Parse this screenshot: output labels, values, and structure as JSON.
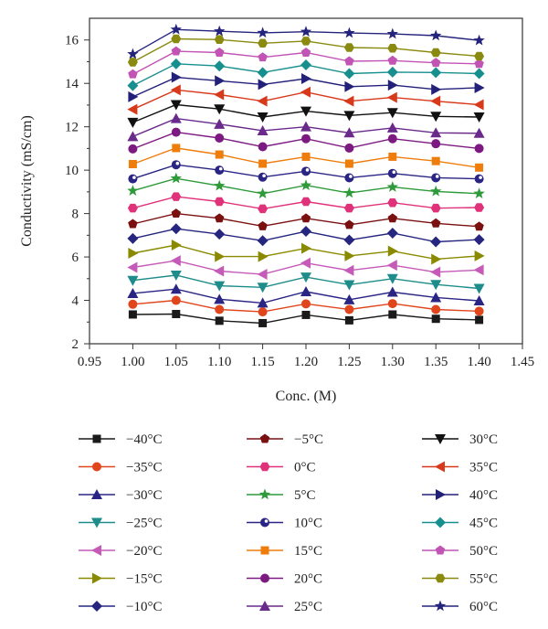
{
  "chart_data": {
    "type": "line",
    "xlabel": "Conc. (M)",
    "ylabel": "Conductivity (mS/cm)",
    "xlim": [
      0.95,
      1.45
    ],
    "ylim": [
      2,
      17
    ],
    "xticks": [
      "0.95",
      "1.00",
      "1.05",
      "1.10",
      "1.15",
      "1.20",
      "1.25",
      "1.30",
      "1.35",
      "1.40",
      "1.45"
    ],
    "yticks": [
      "2",
      "4",
      "6",
      "8",
      "10",
      "12",
      "14",
      "16"
    ],
    "grid": false,
    "legend_position": "bottom",
    "x": [
      1.0,
      1.05,
      1.1,
      1.15,
      1.2,
      1.25,
      1.3,
      1.35,
      1.4
    ],
    "series": [
      {
        "name": "−40°C",
        "color": "#1a1a1a",
        "marker": "square",
        "values": [
          3.35,
          3.37,
          3.06,
          2.95,
          3.33,
          3.08,
          3.35,
          3.15,
          3.1
        ]
      },
      {
        "name": "−35°C",
        "color": "#e0451c",
        "marker": "circle",
        "values": [
          3.82,
          4.0,
          3.58,
          3.47,
          3.84,
          3.58,
          3.85,
          3.58,
          3.5
        ]
      },
      {
        "name": "−30°C",
        "color": "#2a2585",
        "marker": "triangle-up",
        "values": [
          4.32,
          4.52,
          4.05,
          3.88,
          4.4,
          4.03,
          4.38,
          4.13,
          3.98
        ]
      },
      {
        "name": "−25°C",
        "color": "#1e8c8a",
        "marker": "triangle-down",
        "values": [
          4.92,
          5.16,
          4.67,
          4.6,
          5.07,
          4.72,
          5.0,
          4.73,
          4.55
        ]
      },
      {
        "name": "−20°C",
        "color": "#c65ab8",
        "marker": "triangle-left",
        "values": [
          5.52,
          5.83,
          5.35,
          5.2,
          5.72,
          5.38,
          5.62,
          5.3,
          5.4
        ]
      },
      {
        "name": "−15°C",
        "color": "#8a8a00",
        "marker": "triangle-right",
        "values": [
          6.17,
          6.55,
          6.02,
          6.02,
          6.4,
          6.05,
          6.27,
          5.9,
          6.05
        ]
      },
      {
        "name": "−10°C",
        "color": "#262680",
        "marker": "diamond",
        "values": [
          6.85,
          7.3,
          7.05,
          6.75,
          7.18,
          6.78,
          7.1,
          6.7,
          6.8
        ]
      },
      {
        "name": "−5°C",
        "color": "#7a1010",
        "marker": "pentagon",
        "values": [
          7.52,
          8.0,
          7.78,
          7.42,
          7.78,
          7.48,
          7.78,
          7.55,
          7.4
        ]
      },
      {
        "name": "0°C",
        "color": "#e0327a",
        "marker": "hexagon",
        "values": [
          8.25,
          8.78,
          8.55,
          8.22,
          8.55,
          8.25,
          8.5,
          8.25,
          8.28
        ]
      },
      {
        "name": "5°C",
        "color": "#2e9a3a",
        "marker": "star",
        "values": [
          9.05,
          9.62,
          9.28,
          8.92,
          9.3,
          8.95,
          9.22,
          9.02,
          8.92
        ]
      },
      {
        "name": "10°C",
        "color": "#2a2585",
        "marker": "circle-half",
        "values": [
          9.6,
          10.25,
          10.0,
          9.68,
          9.95,
          9.65,
          9.85,
          9.65,
          9.6
        ]
      },
      {
        "name": "15°C",
        "color": "#ee7d0c",
        "marker": "square",
        "values": [
          10.28,
          11.02,
          10.72,
          10.3,
          10.62,
          10.3,
          10.62,
          10.42,
          10.12
        ]
      },
      {
        "name": "20°C",
        "color": "#7d1a82",
        "marker": "circle",
        "values": [
          10.98,
          11.75,
          11.48,
          11.08,
          11.45,
          11.02,
          11.45,
          11.22,
          11.0
        ]
      },
      {
        "name": "25°C",
        "color": "#6a2a8c",
        "marker": "triangle-up",
        "values": [
          11.55,
          12.38,
          12.12,
          11.82,
          12.0,
          11.72,
          11.95,
          11.72,
          11.7
        ]
      },
      {
        "name": "30°C",
        "color": "#111111",
        "marker": "triangle-down",
        "values": [
          12.2,
          13.02,
          12.82,
          12.45,
          12.72,
          12.52,
          12.65,
          12.48,
          12.45
        ]
      },
      {
        "name": "35°C",
        "color": "#d8391b",
        "marker": "triangle-left",
        "values": [
          12.8,
          13.7,
          13.48,
          13.18,
          13.6,
          13.18,
          13.35,
          13.18,
          13.02
        ]
      },
      {
        "name": "40°C",
        "color": "#23207a",
        "marker": "triangle-right",
        "values": [
          13.38,
          14.28,
          14.12,
          13.95,
          14.22,
          13.85,
          13.92,
          13.72,
          13.8
        ]
      },
      {
        "name": "45°C",
        "color": "#178f8f",
        "marker": "diamond",
        "values": [
          13.9,
          14.9,
          14.8,
          14.5,
          14.85,
          14.45,
          14.52,
          14.5,
          14.45
        ]
      },
      {
        "name": "50°C",
        "color": "#c254b5",
        "marker": "pentagon",
        "values": [
          14.42,
          15.48,
          15.42,
          15.2,
          15.42,
          15.02,
          15.05,
          14.95,
          14.9
        ]
      },
      {
        "name": "55°C",
        "color": "#8a8a10",
        "marker": "hexagon",
        "values": [
          14.98,
          16.05,
          16.02,
          15.85,
          15.95,
          15.65,
          15.62,
          15.42,
          15.25
        ]
      },
      {
        "name": "60°C",
        "color": "#25247c",
        "marker": "star",
        "values": [
          15.35,
          16.48,
          16.4,
          16.33,
          16.38,
          16.32,
          16.28,
          16.2,
          15.98
        ]
      }
    ]
  }
}
